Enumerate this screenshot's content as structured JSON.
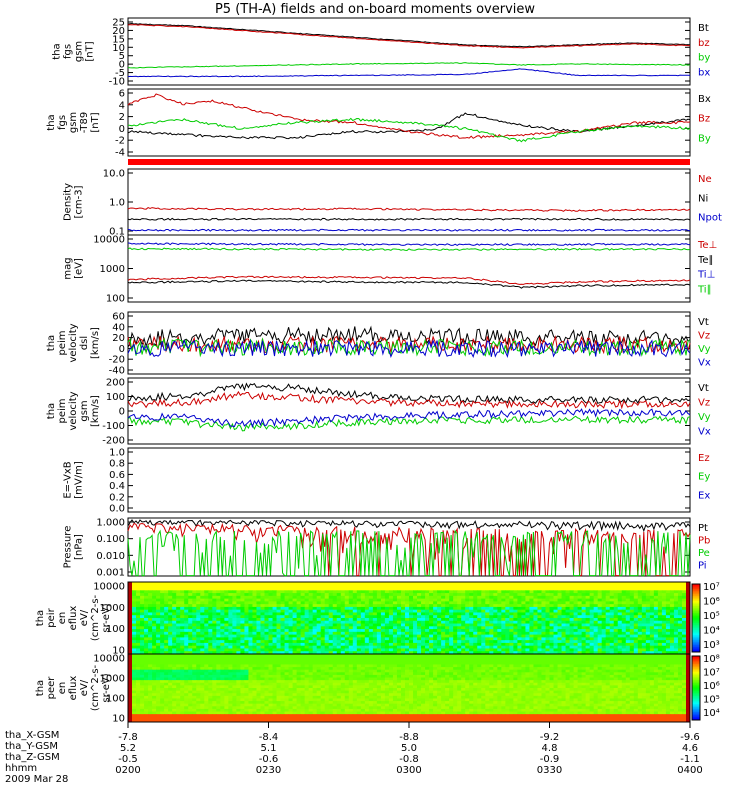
{
  "title": "P5 (TH-A) fields and on-board moments overview",
  "colors": {
    "black": "#000000",
    "red": "#cc0000",
    "green": "#00cc00",
    "blue": "#0000cc",
    "marker": "#ff0000"
  },
  "chart_data": [
    {
      "type": "line",
      "panel": "fgs",
      "ylabel": [
        "tha",
        "fgs",
        "gsm",
        "[nT]"
      ],
      "ytick_labels": [
        "25",
        "20",
        "15",
        "10",
        "5",
        "0",
        "-5",
        "-10"
      ],
      "ylim": [
        -10,
        25
      ],
      "series": [
        {
          "name": "Bt",
          "color": "black",
          "x": [
            0,
            0.1,
            0.2,
            0.3,
            0.4,
            0.5,
            0.6,
            0.7,
            0.8,
            0.9,
            1.0
          ],
          "values": [
            22,
            21,
            19,
            17,
            15,
            13,
            11,
            10,
            11,
            12,
            11
          ]
        },
        {
          "name": "bz",
          "color": "red",
          "x": [
            0,
            0.1,
            0.2,
            0.3,
            0.4,
            0.5,
            0.6,
            0.7,
            0.8,
            0.9,
            1.0
          ],
          "values": [
            21.5,
            20.5,
            18.5,
            16.5,
            14.5,
            12.5,
            10.5,
            9.5,
            10.5,
            11.5,
            10.5
          ]
        },
        {
          "name": "by",
          "color": "green",
          "x": [
            0,
            0.2,
            0.4,
            0.6,
            0.7,
            0.8,
            1.0
          ],
          "values": [
            -1,
            0,
            1,
            1.5,
            0.5,
            1,
            0.5
          ]
        },
        {
          "name": "bx",
          "color": "blue",
          "x": [
            0,
            0.2,
            0.4,
            0.6,
            0.7,
            0.8,
            1.0
          ],
          "values": [
            -5.5,
            -5.5,
            -5,
            -4.5,
            -1.5,
            -5,
            -5
          ]
        }
      ]
    },
    {
      "type": "line",
      "panel": "fgs-dtrend",
      "ylabel": [
        "tha",
        "fgs",
        "gsm",
        "-T89",
        "[nT]"
      ],
      "ytick_labels": [
        "6",
        "4",
        "2",
        "0",
        "-2",
        "-4"
      ],
      "ylim": [
        -5,
        6
      ],
      "series": [
        {
          "name": "Bx",
          "color": "black",
          "x": [
            0,
            0.1,
            0.2,
            0.3,
            0.4,
            0.5,
            0.55,
            0.6,
            0.7,
            0.8,
            0.9,
            1.0
          ],
          "values": [
            -1,
            -1.5,
            -2,
            -2,
            -1,
            -1,
            -0.5,
            2,
            0,
            -1,
            0,
            1
          ]
        },
        {
          "name": "Bz",
          "color": "red",
          "x": [
            0,
            0.05,
            0.1,
            0.15,
            0.2,
            0.3,
            0.4,
            0.5,
            0.6,
            0.7,
            0.8,
            0.9,
            1.0
          ],
          "values": [
            3.5,
            5,
            3.5,
            4,
            3,
            1,
            0.5,
            -1,
            -2,
            -1.5,
            -1,
            0.5,
            0.5
          ]
        },
        {
          "name": "By",
          "color": "green",
          "x": [
            0,
            0.1,
            0.2,
            0.3,
            0.4,
            0.5,
            0.6,
            0.7,
            0.8,
            0.9,
            1.0
          ],
          "values": [
            0,
            1,
            -0.5,
            0.5,
            1,
            0.5,
            -0.5,
            -2.5,
            -1,
            0,
            -0.5
          ]
        }
      ]
    },
    {
      "type": "line",
      "panel": "density",
      "scale": "log",
      "ylabel": [
        "Density",
        "[cm-3]"
      ],
      "ytick_labels": [
        "10.0",
        "1.0",
        "0.1"
      ],
      "ylim": [
        0.1,
        10
      ],
      "series": [
        {
          "name": "Ne",
          "color": "red",
          "x": [
            0,
            0.2,
            0.4,
            0.6,
            0.8,
            1.0
          ],
          "values": [
            0.65,
            0.6,
            0.62,
            0.58,
            0.55,
            0.6
          ]
        },
        {
          "name": "Ni",
          "color": "black",
          "x": [
            0,
            0.5,
            1.0
          ],
          "values": [
            0.3,
            0.3,
            0.3
          ]
        },
        {
          "name": "Npot",
          "color": "blue",
          "x": [
            0,
            0.5,
            1.0
          ],
          "values": [
            0.14,
            0.14,
            0.14
          ]
        }
      ]
    },
    {
      "type": "line",
      "panel": "temperature",
      "scale": "log",
      "ylabel": [
        "mag",
        "[eV]"
      ],
      "ytick_labels": [
        "10000",
        "1000",
        "100"
      ],
      "ylim": [
        100,
        12000
      ],
      "series": [
        {
          "name": "Te⊥",
          "color": "red",
          "x": [
            0,
            0.2,
            0.4,
            0.6,
            0.7,
            0.8,
            1.0
          ],
          "values": [
            500,
            600,
            580,
            550,
            350,
            420,
            480
          ]
        },
        {
          "name": "Te∥",
          "color": "black",
          "x": [
            0,
            0.2,
            0.4,
            0.6,
            0.7,
            0.8,
            1.0
          ],
          "values": [
            400,
            450,
            420,
            400,
            280,
            320,
            350
          ]
        },
        {
          "name": "Ti⊥",
          "color": "blue",
          "x": [
            0,
            0.5,
            1.0
          ],
          "values": [
            6500,
            6000,
            6200
          ]
        },
        {
          "name": "Ti∥",
          "color": "green",
          "x": [
            0,
            0.5,
            1.0
          ],
          "values": [
            4500,
            4200,
            4400
          ]
        }
      ]
    },
    {
      "type": "line",
      "panel": "velocity-dsl",
      "ylabel": [
        "tha",
        "peim",
        "velocity",
        "dsl",
        "[km/s]"
      ],
      "ytick_labels": [
        "60",
        "40",
        "20",
        "0",
        "-20",
        "-40"
      ],
      "ylim": [
        -45,
        60
      ],
      "series": [
        {
          "name": "Vt",
          "color": "black",
          "x": [
            0,
            0.2,
            0.4,
            0.6,
            0.8,
            1.0
          ],
          "values": [
            15,
            20,
            22,
            18,
            15,
            15
          ]
        },
        {
          "name": "Vz",
          "color": "red",
          "x": [
            0,
            0.5,
            1.0
          ],
          "values": [
            5,
            5,
            5
          ]
        },
        {
          "name": "Vy",
          "color": "green",
          "x": [
            0,
            0.5,
            1.0
          ],
          "values": [
            0,
            0,
            0
          ]
        },
        {
          "name": "Vx",
          "color": "blue",
          "x": [
            0,
            0.5,
            1.0
          ],
          "values": [
            -2,
            -2,
            -2
          ]
        }
      ]
    },
    {
      "type": "line",
      "panel": "velocity-gsm",
      "ylabel": [
        "tha",
        "peim",
        "velocity",
        "gsm",
        "[km/s]"
      ],
      "ytick_labels": [
        "200",
        "100",
        "0",
        "-100",
        "-200"
      ],
      "ylim": [
        -200,
        200
      ],
      "series": [
        {
          "name": "Vt",
          "color": "black",
          "x": [
            0,
            0.1,
            0.2,
            0.3,
            0.4,
            0.5,
            0.6,
            0.8,
            1.0
          ],
          "values": [
            80,
            90,
            150,
            140,
            100,
            80,
            70,
            65,
            70
          ]
        },
        {
          "name": "Vz",
          "color": "red",
          "x": [
            0,
            0.1,
            0.2,
            0.3,
            0.4,
            0.5,
            0.6,
            0.8,
            1.0
          ],
          "values": [
            40,
            50,
            100,
            80,
            60,
            50,
            45,
            40,
            45
          ]
        },
        {
          "name": "Vy",
          "color": "green",
          "x": [
            0,
            0.1,
            0.2,
            0.3,
            0.4,
            0.5,
            0.6,
            0.8,
            1.0
          ],
          "values": [
            -60,
            -70,
            -100,
            -90,
            -70,
            -60,
            -55,
            -50,
            -55
          ]
        },
        {
          "name": "Vx",
          "color": "blue",
          "x": [
            0,
            0.1,
            0.2,
            0.3,
            0.4,
            0.5,
            0.6,
            0.8,
            1.0
          ],
          "values": [
            -30,
            -40,
            -80,
            -60,
            -40,
            -30,
            -20,
            -10,
            -10
          ]
        }
      ]
    },
    {
      "type": "line",
      "panel": "efield",
      "ylabel": [
        "E=-VxB",
        "[mV/m]"
      ],
      "ytick_labels": [
        "1.0",
        "0.8",
        "0.6",
        "0.4",
        "0.2",
        "0.0"
      ],
      "ylim": [
        0,
        1
      ],
      "series": [
        {
          "name": "Ez",
          "color": "red",
          "x": [],
          "values": []
        },
        {
          "name": "Ey",
          "color": "green",
          "x": [],
          "values": []
        },
        {
          "name": "Ex",
          "color": "blue",
          "x": [],
          "values": []
        }
      ]
    },
    {
      "type": "line",
      "panel": "pressure",
      "scale": "log",
      "ylabel": [
        "Pressure",
        "[nPa]"
      ],
      "ytick_labels": [
        "1.000",
        "0.100",
        "0.010",
        "0.001"
      ],
      "ylim": [
        0.001,
        1
      ],
      "series": [
        {
          "name": "Pt",
          "color": "black",
          "x": [
            0,
            0.5,
            1.0
          ],
          "values": [
            0.6,
            0.5,
            0.4
          ]
        },
        {
          "name": "Pb",
          "color": "red",
          "x": [
            0,
            0.2,
            0.4,
            0.6,
            0.8,
            1.0
          ],
          "values": [
            0.35,
            0.25,
            0.15,
            0.08,
            0.06,
            0.07
          ]
        },
        {
          "name": "Pe",
          "color": "green",
          "x": [
            0,
            0.2,
            0.4,
            0.6,
            0.8,
            1.0
          ],
          "values": [
            0.018,
            0.016,
            0.017,
            0.015,
            0.012,
            0.013
          ]
        },
        {
          "name": "Pi",
          "color": "blue",
          "x": [],
          "values": []
        }
      ]
    },
    {
      "type": "heatmap",
      "panel": "peir-spectrogram",
      "scale": "log",
      "ylabel": [
        "tha",
        "peir",
        "en",
        "eflux",
        "eV/",
        "(cm^2-s-",
        "sr-eV)"
      ],
      "ytick_labels": [
        "10000",
        "1000",
        "100",
        "10"
      ],
      "colorbar_labels": [
        "10⁷",
        "10⁶",
        "10⁵",
        "10⁴",
        "10³"
      ]
    },
    {
      "type": "heatmap",
      "panel": "peer-spectrogram",
      "scale": "log",
      "ylabel": [
        "tha",
        "peer",
        "en",
        "eflux",
        "eV/",
        "(cm^2-s-",
        "sr-eV)"
      ],
      "ytick_labels": [
        "10000",
        "1000",
        "100",
        "10"
      ],
      "colorbar_labels": [
        "10⁸",
        "10⁷",
        "10⁶",
        "10⁵",
        "10⁴"
      ]
    }
  ],
  "xaxis": {
    "row_labels": [
      "tha_X-GSM",
      "tha_Y-GSM",
      "tha_Z-GSM",
      "hhmm",
      "2009 Mar 28"
    ],
    "ticks": [
      {
        "x": "-7.8",
        "y": "5.2",
        "z": "-0.5",
        "t": "0200"
      },
      {
        "x": "-8.4",
        "y": "5.1",
        "z": "-0.6",
        "t": "0230"
      },
      {
        "x": "-8.8",
        "y": "5.0",
        "z": "-0.8",
        "t": "0300"
      },
      {
        "x": "-9.2",
        "y": "4.8",
        "z": "-0.9",
        "t": "0330"
      },
      {
        "x": "-9.6",
        "y": "4.6",
        "z": "-1.1",
        "t": "0400"
      }
    ]
  }
}
